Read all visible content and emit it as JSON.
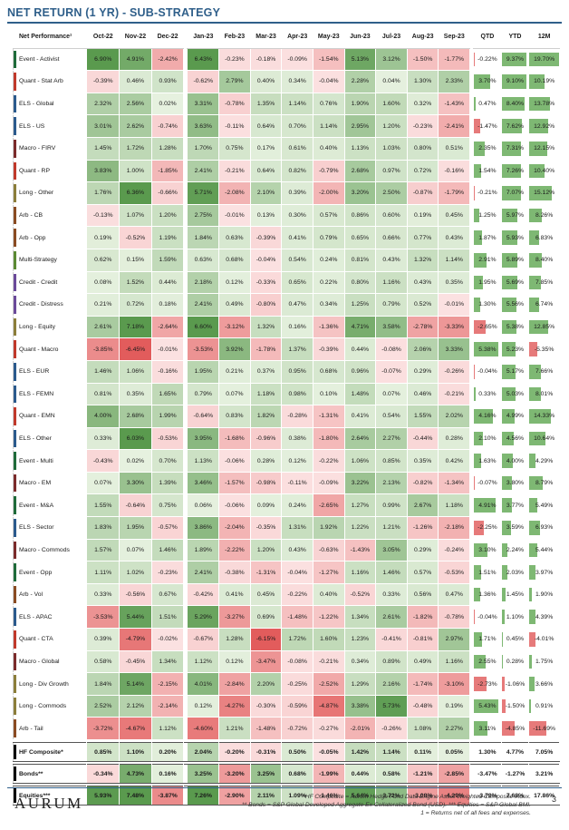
{
  "page": {
    "title": "NET RETURN (1 YR) - SUB-STRATEGY",
    "logo": "AURUM",
    "page_number": "3",
    "footnotes": [
      "*HF Composite = Aurum Hedge Fund Data Engine Asset Weighted Composite Index.",
      "** Bonds = S&P Global Developed Aggregate Ex Collateralized Bond (USD). *** Equities = S&P Global BMI.",
      "1 = Returns net of all fees and expenses."
    ]
  },
  "table": {
    "header_label": "Net Performance¹",
    "months": [
      "Oct-22",
      "Nov-22",
      "Dec-22",
      "Jan-23",
      "Feb-23",
      "Mar-23",
      "Apr-23",
      "May-23",
      "Jun-23",
      "Jul-23",
      "Aug-23",
      "Sep-23"
    ],
    "summary_headers": [
      "QTD",
      "YTD",
      "12M"
    ],
    "colors": {
      "positive_strong": "#5a9a4e",
      "positive_light": "#e6f1df",
      "negative_strong": "#e25c5c",
      "negative_light": "#fbe1e1",
      "bar_positive": "#7eb873",
      "bar_negative": "#e67a7a",
      "cat_event": "#1f6b3a",
      "cat_quant": "#c0392b",
      "cat_els": "#2b5a8c",
      "cat_macro": "#7b2b2b",
      "cat_long": "#8b7d3a",
      "cat_arb": "#8a4b22",
      "cat_multi": "#5b8a33",
      "cat_credit": "#6b4a9a"
    },
    "rows": [
      {
        "name": "Event - Activist",
        "cat": "event",
        "m": [
          "6.90%",
          "4.91%",
          "-2.42%",
          "6.43%",
          "-0.23%",
          "-0.18%",
          "-0.09%",
          "-1.54%",
          "5.13%",
          "3.12%",
          "-1.50%",
          "-1.77%"
        ],
        "s": [
          "-0.22%",
          "9.37%",
          "19.70%"
        ]
      },
      {
        "name": "Quant - Stat Arb",
        "cat": "quant",
        "m": [
          "-0.39%",
          "0.46%",
          "0.93%",
          "-0.62%",
          "2.79%",
          "0.40%",
          "0.34%",
          "-0.04%",
          "2.28%",
          "0.04%",
          "1.30%",
          "2.33%"
        ],
        "s": [
          "3.70%",
          "9.10%",
          "10.19%"
        ]
      },
      {
        "name": "ELS - Global",
        "cat": "els",
        "m": [
          "2.32%",
          "2.56%",
          "0.02%",
          "3.31%",
          "-0.78%",
          "1.35%",
          "1.14%",
          "0.76%",
          "1.90%",
          "1.60%",
          "0.32%",
          "-1.43%"
        ],
        "s": [
          "0.47%",
          "8.40%",
          "13.78%"
        ]
      },
      {
        "name": "ELS - US",
        "cat": "els",
        "m": [
          "3.01%",
          "2.62%",
          "-0.74%",
          "3.63%",
          "-0.11%",
          "0.64%",
          "0.70%",
          "1.14%",
          "2.95%",
          "1.20%",
          "-0.23%",
          "-2.41%"
        ],
        "s": [
          "-1.47%",
          "7.62%",
          "12.92%"
        ]
      },
      {
        "name": "Macro - FIRV",
        "cat": "macro",
        "m": [
          "1.45%",
          "1.72%",
          "1.28%",
          "1.70%",
          "0.75%",
          "0.17%",
          "0.61%",
          "0.40%",
          "1.13%",
          "1.03%",
          "0.80%",
          "0.51%"
        ],
        "s": [
          "2.35%",
          "7.31%",
          "12.15%"
        ]
      },
      {
        "name": "Quant - RP",
        "cat": "quant",
        "m": [
          "3.83%",
          "1.00%",
          "-1.85%",
          "2.41%",
          "-0.21%",
          "0.64%",
          "0.82%",
          "-0.79%",
          "2.68%",
          "0.97%",
          "0.72%",
          "-0.16%"
        ],
        "s": [
          "1.54%",
          "7.26%",
          "10.40%"
        ]
      },
      {
        "name": "Long - Other",
        "cat": "long",
        "m": [
          "1.76%",
          "6.36%",
          "-0.66%",
          "5.71%",
          "-2.08%",
          "2.10%",
          "0.39%",
          "-2.00%",
          "3.20%",
          "2.50%",
          "-0.87%",
          "-1.79%"
        ],
        "s": [
          "-0.21%",
          "7.07%",
          "15.12%"
        ]
      },
      {
        "name": "Arb - CB",
        "cat": "arb",
        "m": [
          "-0.13%",
          "1.07%",
          "1.20%",
          "2.75%",
          "-0.01%",
          "0.13%",
          "0.30%",
          "0.57%",
          "0.86%",
          "0.60%",
          "0.19%",
          "0.45%"
        ],
        "s": [
          "1.25%",
          "5.97%",
          "8.26%"
        ]
      },
      {
        "name": "Arb - Opp",
        "cat": "arb",
        "m": [
          "0.19%",
          "-0.52%",
          "1.19%",
          "1.84%",
          "0.63%",
          "-0.39%",
          "0.41%",
          "0.79%",
          "0.65%",
          "0.66%",
          "0.77%",
          "0.43%"
        ],
        "s": [
          "1.87%",
          "5.93%",
          "6.83%"
        ]
      },
      {
        "name": "Multi-Strategy",
        "cat": "multi",
        "m": [
          "0.62%",
          "0.15%",
          "1.59%",
          "0.63%",
          "0.68%",
          "-0.04%",
          "0.54%",
          "0.24%",
          "0.81%",
          "0.43%",
          "1.32%",
          "1.14%"
        ],
        "s": [
          "2.91%",
          "5.89%",
          "8.40%"
        ]
      },
      {
        "name": "Credit - Credit",
        "cat": "credit",
        "m": [
          "0.08%",
          "1.52%",
          "0.44%",
          "2.18%",
          "0.12%",
          "-0.33%",
          "0.65%",
          "0.22%",
          "0.80%",
          "1.16%",
          "0.43%",
          "0.35%"
        ],
        "s": [
          "1.95%",
          "5.69%",
          "7.85%"
        ]
      },
      {
        "name": "Credit - Distress",
        "cat": "credit",
        "m": [
          "0.21%",
          "0.72%",
          "0.18%",
          "2.41%",
          "0.49%",
          "-0.80%",
          "0.47%",
          "0.34%",
          "1.25%",
          "0.79%",
          "0.52%",
          "-0.01%"
        ],
        "s": [
          "1.30%",
          "5.56%",
          "6.74%"
        ]
      },
      {
        "name": "Long - Equity",
        "cat": "long",
        "m": [
          "2.61%",
          "7.18%",
          "-2.64%",
          "6.60%",
          "-3.12%",
          "1.32%",
          "0.16%",
          "-1.36%",
          "4.71%",
          "3.58%",
          "-2.78%",
          "-3.33%"
        ],
        "s": [
          "-2.65%",
          "5.38%",
          "12.85%"
        ]
      },
      {
        "name": "Quant - Macro",
        "cat": "quant",
        "m": [
          "-3.85%",
          "-6.45%",
          "-0.01%",
          "-3.53%",
          "3.92%",
          "-1.78%",
          "1.37%",
          "-0.39%",
          "0.44%",
          "-0.08%",
          "2.06%",
          "3.33%"
        ],
        "s": [
          "5.38%",
          "5.23%",
          "-5.35%"
        ]
      },
      {
        "name": "ELS - EUR",
        "cat": "els",
        "m": [
          "1.46%",
          "1.06%",
          "-0.16%",
          "1.95%",
          "0.21%",
          "0.37%",
          "0.95%",
          "0.68%",
          "0.96%",
          "-0.07%",
          "0.29%",
          "-0.26%"
        ],
        "s": [
          "-0.04%",
          "5.17%",
          "7.66%"
        ]
      },
      {
        "name": "ELS - FEMN",
        "cat": "els",
        "m": [
          "0.81%",
          "0.35%",
          "1.65%",
          "0.79%",
          "0.07%",
          "1.18%",
          "0.98%",
          "0.10%",
          "1.48%",
          "0.07%",
          "0.46%",
          "-0.21%"
        ],
        "s": [
          "0.33%",
          "5.03%",
          "8.01%"
        ]
      },
      {
        "name": "Quant - EMN",
        "cat": "quant",
        "m": [
          "4.00%",
          "2.68%",
          "1.99%",
          "-0.64%",
          "0.83%",
          "1.82%",
          "-0.28%",
          "-1.31%",
          "0.41%",
          "0.54%",
          "1.55%",
          "2.02%"
        ],
        "s": [
          "4.16%",
          "4.99%",
          "14.33%"
        ]
      },
      {
        "name": "ELS - Other",
        "cat": "els",
        "m": [
          "0.33%",
          "6.03%",
          "-0.53%",
          "3.95%",
          "-1.68%",
          "-0.96%",
          "0.38%",
          "-1.80%",
          "2.64%",
          "2.27%",
          "-0.44%",
          "0.28%"
        ],
        "s": [
          "2.10%",
          "4.56%",
          "10.64%"
        ]
      },
      {
        "name": "Event - Multi",
        "cat": "event",
        "m": [
          "-0.43%",
          "0.02%",
          "0.70%",
          "1.13%",
          "-0.06%",
          "0.28%",
          "0.12%",
          "-0.22%",
          "1.06%",
          "0.85%",
          "0.35%",
          "0.42%"
        ],
        "s": [
          "1.63%",
          "4.00%",
          "4.29%"
        ]
      },
      {
        "name": "Macro - EM",
        "cat": "macro",
        "m": [
          "0.07%",
          "3.30%",
          "1.39%",
          "3.46%",
          "-1.57%",
          "-0.98%",
          "-0.11%",
          "-0.09%",
          "3.22%",
          "2.13%",
          "-0.82%",
          "-1.34%"
        ],
        "s": [
          "-0.07%",
          "3.80%",
          "8.79%"
        ]
      },
      {
        "name": "Event - M&A",
        "cat": "event",
        "m": [
          "1.55%",
          "-0.64%",
          "0.75%",
          "0.06%",
          "-0.06%",
          "0.09%",
          "0.24%",
          "-2.65%",
          "1.27%",
          "0.99%",
          "2.67%",
          "1.18%"
        ],
        "s": [
          "4.91%",
          "3.77%",
          "5.49%"
        ]
      },
      {
        "name": "ELS - Sector",
        "cat": "els",
        "m": [
          "1.83%",
          "1.95%",
          "-0.57%",
          "3.86%",
          "-2.04%",
          "-0.35%",
          "1.31%",
          "1.92%",
          "1.22%",
          "1.21%",
          "-1.26%",
          "-2.18%"
        ],
        "s": [
          "-2.25%",
          "3.59%",
          "6.93%"
        ]
      },
      {
        "name": "Macro - Commods",
        "cat": "macro",
        "m": [
          "1.57%",
          "0.07%",
          "1.46%",
          "1.89%",
          "-2.22%",
          "1.20%",
          "0.43%",
          "-0.63%",
          "-1.43%",
          "3.05%",
          "0.29%",
          "-0.24%"
        ],
        "s": [
          "3.10%",
          "2.24%",
          "5.44%"
        ]
      },
      {
        "name": "Event - Opp",
        "cat": "event",
        "m": [
          "1.11%",
          "1.02%",
          "-0.23%",
          "2.41%",
          "-0.38%",
          "-1.31%",
          "-0.04%",
          "-1.27%",
          "1.16%",
          "1.46%",
          "0.57%",
          "-0.53%"
        ],
        "s": [
          "1.51%",
          "2.03%",
          "3.97%"
        ]
      },
      {
        "name": "Arb - Vol",
        "cat": "arb",
        "m": [
          "0.33%",
          "-0.56%",
          "0.67%",
          "-0.42%",
          "0.41%",
          "0.45%",
          "-0.22%",
          "0.40%",
          "-0.52%",
          "0.33%",
          "0.56%",
          "0.47%"
        ],
        "s": [
          "1.36%",
          "1.45%",
          "1.90%"
        ]
      },
      {
        "name": "ELS - APAC",
        "cat": "els",
        "m": [
          "-3.53%",
          "5.44%",
          "1.51%",
          "5.29%",
          "-3.27%",
          "0.69%",
          "-1.48%",
          "-1.22%",
          "1.34%",
          "2.61%",
          "-1.82%",
          "-0.78%"
        ],
        "s": [
          "-0.04%",
          "1.10%",
          "4.39%"
        ]
      },
      {
        "name": "Quant - CTA",
        "cat": "quant",
        "m": [
          "0.39%",
          "-4.79%",
          "-0.02%",
          "-0.67%",
          "1.28%",
          "-6.15%",
          "1.72%",
          "1.60%",
          "1.23%",
          "-0.41%",
          "-0.81%",
          "2.97%"
        ],
        "s": [
          "1.71%",
          "0.45%",
          "-4.01%"
        ]
      },
      {
        "name": "Macro - Global",
        "cat": "macro",
        "m": [
          "0.58%",
          "-0.45%",
          "1.34%",
          "1.12%",
          "0.12%",
          "-3.47%",
          "-0.08%",
          "-0.21%",
          "0.34%",
          "0.89%",
          "0.49%",
          "1.16%"
        ],
        "s": [
          "2.55%",
          "0.28%",
          "1.75%"
        ]
      },
      {
        "name": "Long - Div Growth",
        "cat": "long",
        "m": [
          "1.84%",
          "5.14%",
          "-2.15%",
          "4.01%",
          "-2.84%",
          "2.20%",
          "-0.25%",
          "-2.52%",
          "1.29%",
          "2.16%",
          "-1.74%",
          "-3.10%"
        ],
        "s": [
          "-2.73%",
          "-1.06%",
          "3.66%"
        ]
      },
      {
        "name": "Long - Commods",
        "cat": "long",
        "m": [
          "2.52%",
          "2.12%",
          "-2.14%",
          "0.12%",
          "-4.27%",
          "-0.30%",
          "-0.59%",
          "-4.87%",
          "3.38%",
          "5.73%",
          "-0.48%",
          "0.19%"
        ],
        "s": [
          "5.43%",
          "-1.50%",
          "0.91%"
        ]
      },
      {
        "name": "Arb - Tail",
        "cat": "arb",
        "m": [
          "-3.72%",
          "-4.67%",
          "1.12%",
          "-4.60%",
          "1.21%",
          "-1.48%",
          "-0.72%",
          "-0.27%",
          "-2.01%",
          "-0.26%",
          "1.08%",
          "2.27%"
        ],
        "s": [
          "3.11%",
          "-4.85%",
          "-11.69%"
        ]
      }
    ],
    "composites": [
      {
        "name": "HF Composite*",
        "m": [
          "0.85%",
          "1.10%",
          "0.20%",
          "2.04%",
          "-0.20%",
          "-0.31%",
          "0.50%",
          "-0.05%",
          "1.42%",
          "1.14%",
          "0.11%",
          "0.05%"
        ],
        "s": [
          "1.30%",
          "4.77%",
          "7.05%"
        ]
      },
      {
        "name": "Bonds**",
        "m": [
          "-0.34%",
          "4.73%",
          "0.16%",
          "3.25%",
          "-3.20%",
          "3.25%",
          "0.68%",
          "-1.99%",
          "0.44%",
          "0.58%",
          "-1.21%",
          "-2.85%"
        ],
        "s": [
          "-3.47%",
          "-1.27%",
          "3.21%"
        ]
      },
      {
        "name": "Equities***",
        "m": [
          "5.93%",
          "7.48%",
          "-3.87%",
          "7.26%",
          "-2.90%",
          "2.11%",
          "1.09%",
          "-1.46%",
          "5.64%",
          "3.72%",
          "-3.08%",
          "-4.29%"
        ],
        "s": [
          "-3.79%",
          "7.68%",
          "17.86%"
        ]
      }
    ]
  }
}
